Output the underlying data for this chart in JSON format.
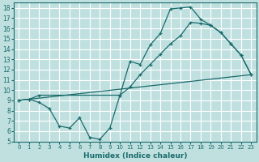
{
  "background_color": "#c0e0e0",
  "grid_color": "#b0d0d0",
  "line_color": "#1a6b6b",
  "xlabel": "Humidex (Indice chaleur)",
  "xlim": [
    -0.5,
    23.5
  ],
  "ylim": [
    5,
    18.5
  ],
  "yticks": [
    5,
    6,
    7,
    8,
    9,
    10,
    11,
    12,
    13,
    14,
    15,
    16,
    17,
    18
  ],
  "xticks": [
    0,
    1,
    2,
    3,
    4,
    5,
    6,
    7,
    8,
    9,
    10,
    11,
    12,
    13,
    14,
    15,
    16,
    17,
    18,
    19,
    20,
    21,
    22,
    23
  ],
  "line1_x": [
    0,
    1,
    2,
    3,
    4,
    5,
    6,
    7,
    8,
    9,
    10,
    11,
    12,
    13,
    14,
    15,
    16,
    17,
    18,
    19,
    20,
    21,
    22,
    23
  ],
  "line1_y": [
    9.0,
    9.1,
    8.8,
    8.2,
    6.5,
    6.3,
    7.3,
    5.4,
    5.2,
    6.3,
    9.5,
    12.8,
    12.5,
    14.4,
    15.5,
    17.9,
    18.0,
    18.1,
    16.9,
    16.3,
    15.6,
    14.5,
    13.4,
    11.5
  ],
  "line2_x": [
    0,
    1,
    2,
    10,
    11,
    12,
    13,
    14,
    15,
    16,
    17,
    18,
    19,
    20,
    21,
    22,
    23
  ],
  "line2_y": [
    9.0,
    9.1,
    9.5,
    9.5,
    10.3,
    11.5,
    12.5,
    13.5,
    14.5,
    15.3,
    16.6,
    16.5,
    16.3,
    15.6,
    14.5,
    13.4,
    11.5
  ],
  "line3_x": [
    0,
    23
  ],
  "line3_y": [
    9.0,
    11.5
  ]
}
